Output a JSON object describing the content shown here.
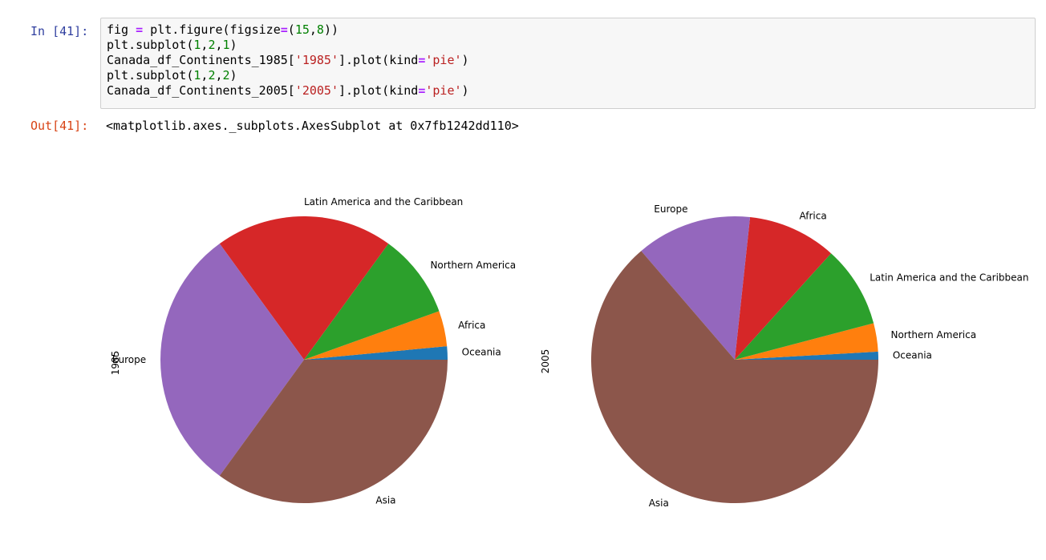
{
  "notebook": {
    "in_prompt": "In [41]:",
    "code_lines": [
      [
        {
          "t": "fig ",
          "c": "k"
        },
        {
          "t": "=",
          "c": "op"
        },
        {
          "t": " plt.figure(figsize",
          "c": "k"
        },
        {
          "t": "=",
          "c": "op"
        },
        {
          "t": "(",
          "c": "k"
        },
        {
          "t": "15",
          "c": "num"
        },
        {
          "t": ",",
          "c": "k"
        },
        {
          "t": "8",
          "c": "num"
        },
        {
          "t": "))",
          "c": "k"
        }
      ],
      [
        {
          "t": "plt.subplot(",
          "c": "k"
        },
        {
          "t": "1",
          "c": "num"
        },
        {
          "t": ",",
          "c": "k"
        },
        {
          "t": "2",
          "c": "num"
        },
        {
          "t": ",",
          "c": "k"
        },
        {
          "t": "1",
          "c": "num"
        },
        {
          "t": ")",
          "c": "k"
        }
      ],
      [
        {
          "t": "Canada_df_Continents_1985[",
          "c": "k"
        },
        {
          "t": "'1985'",
          "c": "str"
        },
        {
          "t": "].plot(kind",
          "c": "k"
        },
        {
          "t": "=",
          "c": "op"
        },
        {
          "t": "'pie'",
          "c": "str"
        },
        {
          "t": ")",
          "c": "k"
        }
      ],
      [
        {
          "t": "plt.subplot(",
          "c": "k"
        },
        {
          "t": "1",
          "c": "num"
        },
        {
          "t": ",",
          "c": "k"
        },
        {
          "t": "2",
          "c": "num"
        },
        {
          "t": ",",
          "c": "k"
        },
        {
          "t": "2",
          "c": "num"
        },
        {
          "t": ")",
          "c": "k"
        }
      ],
      [
        {
          "t": "Canada_df_Continents_2005[",
          "c": "k"
        },
        {
          "t": "'2005'",
          "c": "str"
        },
        {
          "t": "].plot(kind",
          "c": "k"
        },
        {
          "t": "=",
          "c": "op"
        },
        {
          "t": "'pie'",
          "c": "str"
        },
        {
          "t": ")",
          "c": "k"
        }
      ]
    ],
    "out_prompt": "Out[41]:",
    "out_text": "<matplotlib.axes._subplots.AxesSubplot at 0x7fb1242dd110>"
  },
  "chart_data": [
    {
      "type": "pie",
      "ylabel": "1985",
      "slices": [
        {
          "label": "Oceania",
          "value": 1.5,
          "color": "#1f77b4"
        },
        {
          "label": "Africa",
          "value": 4.0,
          "color": "#ff7f0e"
        },
        {
          "label": "Northern America",
          "value": 9.5,
          "color": "#2ca02c"
        },
        {
          "label": "Latin America and the Caribbean",
          "value": 20.0,
          "color": "#d62728"
        },
        {
          "label": "Europe",
          "value": 30.0,
          "color": "#9467bd"
        },
        {
          "label": "Asia",
          "value": 35.0,
          "color": "#8c564b"
        }
      ]
    },
    {
      "type": "pie",
      "ylabel": "2005",
      "slices": [
        {
          "label": "Oceania",
          "value": 0.9,
          "color": "#1f77b4"
        },
        {
          "label": "Northern America",
          "value": 3.2,
          "color": "#ff7f0e"
        },
        {
          "label": "Latin America and the Caribbean",
          "value": 9.2,
          "color": "#2ca02c"
        },
        {
          "label": "Africa",
          "value": 10.0,
          "color": "#d62728"
        },
        {
          "label": "Europe",
          "value": 13.0,
          "color": "#9467bd"
        },
        {
          "label": "Asia",
          "value": 63.7,
          "color": "#8c564b"
        }
      ]
    }
  ]
}
